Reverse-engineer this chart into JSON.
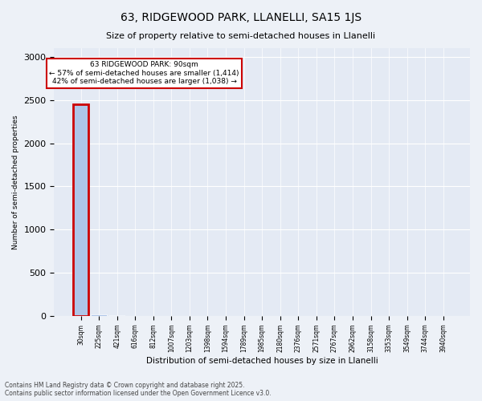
{
  "title1": "63, RIDGEWOOD PARK, LLANELLI, SA15 1JS",
  "title2": "Size of property relative to semi-detached houses in Llanelli",
  "xlabel": "Distribution of semi-detached houses by size in Llanelli",
  "ylabel": "Number of semi-detached properties",
  "bin_labels": [
    "30sqm",
    "225sqm",
    "421sqm",
    "616sqm",
    "812sqm",
    "1007sqm",
    "1203sqm",
    "1398sqm",
    "1594sqm",
    "1789sqm",
    "1985sqm",
    "2180sqm",
    "2376sqm",
    "2571sqm",
    "2767sqm",
    "2962sqm",
    "3158sqm",
    "3353sqm",
    "3549sqm",
    "3744sqm",
    "3940sqm"
  ],
  "bar_values": [
    2452,
    18,
    8,
    4,
    3,
    2,
    2,
    2,
    2,
    1,
    1,
    1,
    1,
    1,
    1,
    1,
    1,
    1,
    1,
    1,
    0
  ],
  "bar_color_default": "#aec6e8",
  "property_bar_index": 0,
  "property_name": "63 RIDGEWOOD PARK: 90sqm",
  "pct_smaller": 57,
  "pct_larger": 42,
  "count_smaller": "1,414",
  "count_larger": "1,038",
  "annotation_box_color": "#cc0000",
  "ylim": [
    0,
    3100
  ],
  "yticks": [
    0,
    500,
    1000,
    1500,
    2000,
    2500,
    3000
  ],
  "footer1": "Contains HM Land Registry data © Crown copyright and database right 2025.",
  "footer2": "Contains public sector information licensed under the Open Government Licence v3.0.",
  "bg_color": "#edf1f7",
  "plot_bg_color": "#e4eaf4"
}
